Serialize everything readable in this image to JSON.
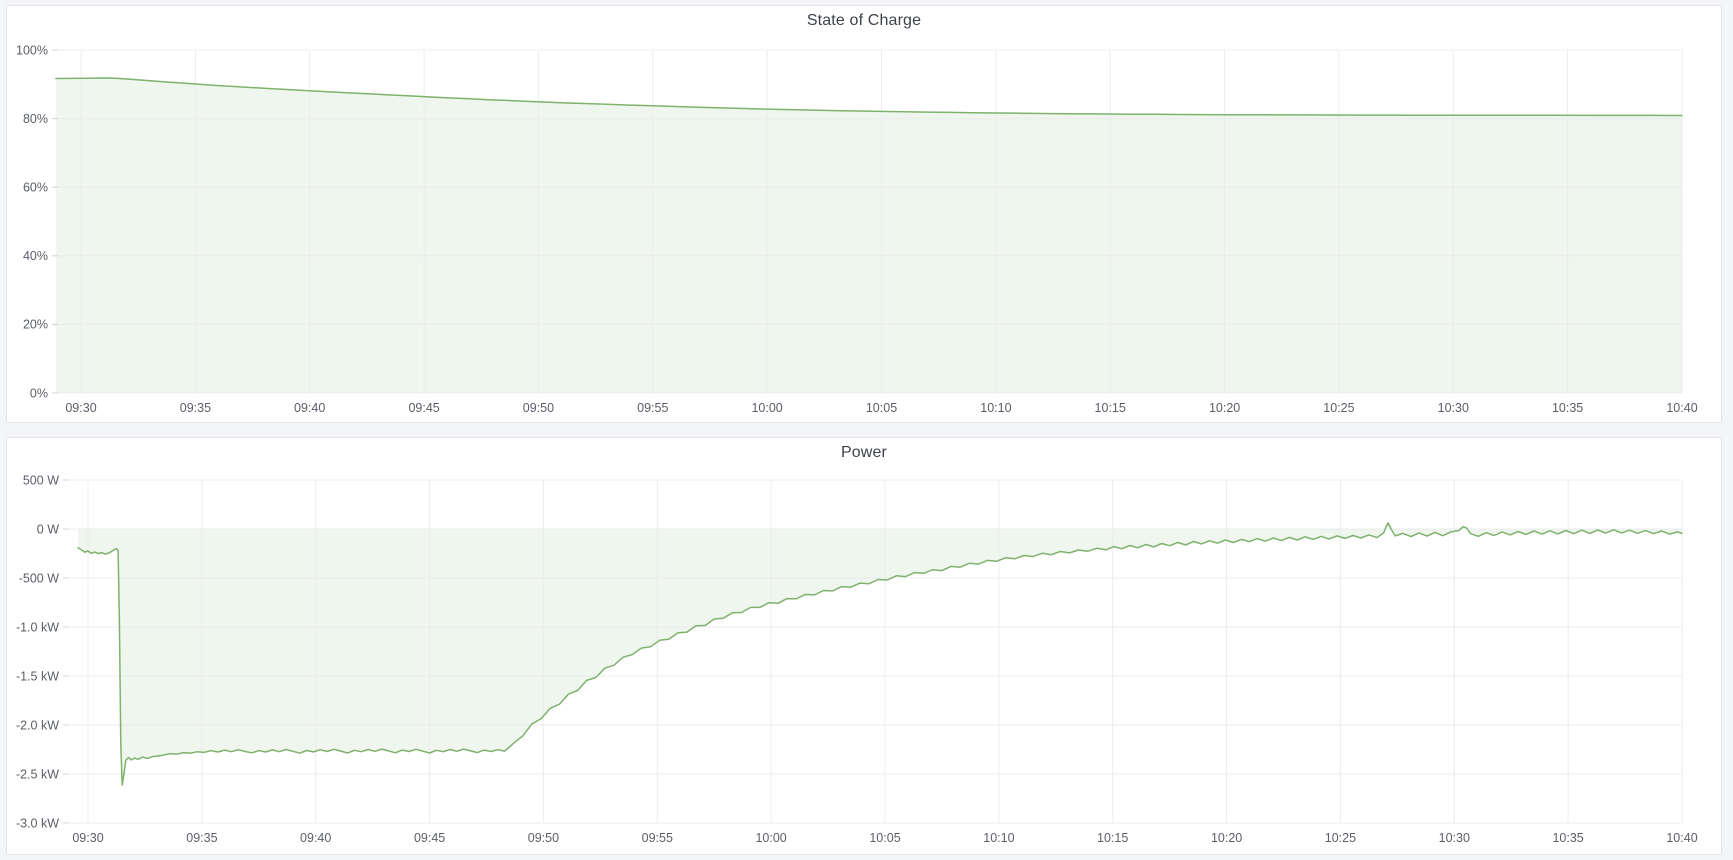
{
  "page": {
    "background": "#f4f5f8"
  },
  "colors": {
    "line": "#7eb26d",
    "fill": "rgba(126,178,109,0.12)",
    "grid": "#ebecee",
    "tick": "#d2d4d9",
    "axis_text": "#5a5e66",
    "title_text": "#3e424a",
    "panel_bg": "#ffffff",
    "panel_border": "#e3e5ea"
  },
  "chart_data": [
    {
      "type": "area",
      "title": "State of Charge",
      "unit": "percent",
      "grid": true,
      "legend": "none",
      "baseline": 0,
      "y_axis": {
        "min": 0,
        "max": 100,
        "ticks": [
          {
            "value": 100,
            "label": "100%"
          },
          {
            "value": 80,
            "label": "80%"
          },
          {
            "value": 60,
            "label": "60%"
          },
          {
            "value": 40,
            "label": "40%"
          },
          {
            "value": 20,
            "label": "20%"
          },
          {
            "value": 0,
            "label": "0%"
          }
        ]
      },
      "x_axis": {
        "tick_minutes": [
          570,
          575,
          580,
          585,
          590,
          595,
          600,
          605,
          610,
          615,
          620,
          625,
          630,
          635,
          640
        ],
        "tick_labels": [
          "09:30",
          "09:35",
          "09:40",
          "09:45",
          "09:50",
          "09:55",
          "10:00",
          "10:05",
          "10:10",
          "10:15",
          "10:20",
          "10:25",
          "10:30",
          "10:35",
          "10:40"
        ]
      },
      "points": [
        [
          568.9,
          91.68
        ],
        [
          569.6,
          91.72
        ],
        [
          570.3,
          91.76
        ],
        [
          571,
          91.85
        ],
        [
          571.4,
          91.8
        ],
        [
          572,
          91.55
        ],
        [
          572.6,
          91.25
        ],
        [
          573.3,
          90.9
        ],
        [
          574,
          90.55
        ],
        [
          574.7,
          90.22
        ],
        [
          575.4,
          89.9
        ],
        [
          576.1,
          89.6
        ],
        [
          576.8,
          89.32
        ],
        [
          577.5,
          89.05
        ],
        [
          578.2,
          88.78
        ],
        [
          579,
          88.48
        ],
        [
          579.8,
          88.18
        ],
        [
          580.6,
          87.9
        ],
        [
          581.4,
          87.62
        ],
        [
          582.2,
          87.35
        ],
        [
          583,
          87.08
        ],
        [
          583.8,
          86.8
        ],
        [
          584.6,
          86.55
        ],
        [
          585.4,
          86.28
        ],
        [
          586.2,
          86.02
        ],
        [
          587,
          85.78
        ],
        [
          587.8,
          85.52
        ],
        [
          588.6,
          85.3
        ],
        [
          589.4,
          85.06
        ],
        [
          590.2,
          84.85
        ],
        [
          591,
          84.62
        ],
        [
          592,
          84.4
        ],
        [
          593,
          84.16
        ],
        [
          594,
          83.94
        ],
        [
          595,
          83.72
        ],
        [
          596,
          83.52
        ],
        [
          597,
          83.32
        ],
        [
          598,
          83.12
        ],
        [
          599,
          82.95
        ],
        [
          600,
          82.78
        ],
        [
          601,
          82.62
        ],
        [
          602,
          82.48
        ],
        [
          603,
          82.34
        ],
        [
          604,
          82.22
        ],
        [
          605,
          82.1
        ],
        [
          606,
          82
        ],
        [
          607,
          81.9
        ],
        [
          608,
          81.8
        ],
        [
          609,
          81.72
        ],
        [
          610,
          81.64
        ],
        [
          611,
          81.56
        ],
        [
          612,
          81.5
        ],
        [
          613,
          81.44
        ],
        [
          614,
          81.38
        ],
        [
          615,
          81.33
        ],
        [
          616,
          81.28
        ],
        [
          617,
          81.24
        ],
        [
          618,
          81.2
        ],
        [
          619,
          81.17
        ],
        [
          620,
          81.14
        ],
        [
          621.5,
          81.1
        ],
        [
          623,
          81.07
        ],
        [
          624.5,
          81.04
        ],
        [
          626,
          81.02
        ],
        [
          628,
          81
        ],
        [
          630,
          80.98
        ],
        [
          632,
          80.96
        ],
        [
          634,
          80.95
        ],
        [
          636,
          80.93
        ],
        [
          638,
          80.92
        ],
        [
          640,
          80.91
        ]
      ]
    },
    {
      "type": "area",
      "title": "Power",
      "unit": "watt",
      "grid": true,
      "legend": "none",
      "baseline": 0,
      "y_axis": {
        "min": -3000,
        "max": 500,
        "ticks": [
          {
            "value": 500,
            "label": "500 W"
          },
          {
            "value": 0,
            "label": "0 W"
          },
          {
            "value": -500,
            "label": "-500 W"
          },
          {
            "value": -1000,
            "label": "-1.0 kW"
          },
          {
            "value": -1500,
            "label": "-1.5 kW"
          },
          {
            "value": -2000,
            "label": "-2.0 kW"
          },
          {
            "value": -2500,
            "label": "-2.5 kW"
          },
          {
            "value": -3000,
            "label": "-3.0 kW"
          }
        ]
      },
      "x_axis": {
        "tick_minutes": [
          570,
          575,
          580,
          585,
          590,
          595,
          600,
          605,
          610,
          615,
          620,
          625,
          630,
          635,
          640
        ],
        "tick_labels": [
          "09:30",
          "09:35",
          "09:40",
          "09:45",
          "09:50",
          "09:55",
          "10:00",
          "10:05",
          "10:10",
          "10:15",
          "10:20",
          "10:25",
          "10:30",
          "10:35",
          "10:40"
        ]
      },
      "points": [
        [
          569.56,
          -192
        ],
        [
          569.7,
          -212
        ],
        [
          569.85,
          -236
        ],
        [
          570,
          -225
        ],
        [
          570.15,
          -247
        ],
        [
          570.3,
          -236
        ],
        [
          570.45,
          -251
        ],
        [
          570.6,
          -241
        ],
        [
          570.75,
          -256
        ],
        [
          570.9,
          -246
        ],
        [
          571.05,
          -228
        ],
        [
          571.15,
          -210
        ],
        [
          571.25,
          -200
        ],
        [
          571.32,
          -222
        ],
        [
          571.38,
          -950
        ],
        [
          571.44,
          -2200
        ],
        [
          571.5,
          -2612
        ],
        [
          571.58,
          -2495
        ],
        [
          571.66,
          -2360
        ],
        [
          571.78,
          -2332
        ],
        [
          571.9,
          -2356
        ],
        [
          572.05,
          -2338
        ],
        [
          572.2,
          -2350
        ],
        [
          572.4,
          -2328
        ],
        [
          572.6,
          -2342
        ],
        [
          572.8,
          -2324
        ],
        [
          573,
          -2318
        ],
        [
          573.3,
          -2308
        ],
        [
          573.6,
          -2292
        ],
        [
          573.9,
          -2298
        ],
        [
          574.2,
          -2282
        ],
        [
          574.5,
          -2288
        ],
        [
          574.8,
          -2272
        ],
        [
          575.1,
          -2280
        ],
        [
          575.4,
          -2262
        ],
        [
          575.7,
          -2276
        ],
        [
          576,
          -2256
        ],
        [
          576.3,
          -2272
        ],
        [
          576.6,
          -2252
        ],
        [
          576.9,
          -2270
        ],
        [
          577.2,
          -2284
        ],
        [
          577.5,
          -2262
        ],
        [
          577.8,
          -2276
        ],
        [
          578.1,
          -2254
        ],
        [
          578.4,
          -2272
        ],
        [
          578.7,
          -2250
        ],
        [
          579,
          -2268
        ],
        [
          579.3,
          -2288
        ],
        [
          579.6,
          -2260
        ],
        [
          579.9,
          -2274
        ],
        [
          580.2,
          -2252
        ],
        [
          580.5,
          -2270
        ],
        [
          580.8,
          -2248
        ],
        [
          581.1,
          -2266
        ],
        [
          581.4,
          -2286
        ],
        [
          581.7,
          -2258
        ],
        [
          582,
          -2272
        ],
        [
          582.3,
          -2250
        ],
        [
          582.6,
          -2268
        ],
        [
          582.9,
          -2246
        ],
        [
          583.2,
          -2264
        ],
        [
          583.5,
          -2284
        ],
        [
          583.8,
          -2256
        ],
        [
          584.1,
          -2270
        ],
        [
          584.4,
          -2248
        ],
        [
          584.7,
          -2266
        ],
        [
          585,
          -2286
        ],
        [
          585.3,
          -2258
        ],
        [
          585.6,
          -2272
        ],
        [
          585.9,
          -2250
        ],
        [
          586.2,
          -2268
        ],
        [
          586.5,
          -2246
        ],
        [
          586.8,
          -2264
        ],
        [
          587.1,
          -2282
        ],
        [
          587.4,
          -2256
        ],
        [
          587.7,
          -2270
        ],
        [
          588,
          -2252
        ],
        [
          588.3,
          -2266
        ],
        [
          588.7,
          -2185
        ],
        [
          589.1,
          -2110
        ],
        [
          589.5,
          -1988
        ],
        [
          589.9,
          -1935
        ],
        [
          590.3,
          -1830
        ],
        [
          590.7,
          -1788
        ],
        [
          591.1,
          -1685
        ],
        [
          591.5,
          -1648
        ],
        [
          591.9,
          -1545
        ],
        [
          592.3,
          -1515
        ],
        [
          592.7,
          -1420
        ],
        [
          593.1,
          -1390
        ],
        [
          593.5,
          -1308
        ],
        [
          593.9,
          -1282
        ],
        [
          594.3,
          -1215
        ],
        [
          594.7,
          -1202
        ],
        [
          595.1,
          -1136
        ],
        [
          595.5,
          -1125
        ],
        [
          595.9,
          -1060
        ],
        [
          596.3,
          -1052
        ],
        [
          596.7,
          -988
        ],
        [
          597.1,
          -985
        ],
        [
          597.5,
          -918
        ],
        [
          597.9,
          -910
        ],
        [
          598.3,
          -855
        ],
        [
          598.7,
          -852
        ],
        [
          599.1,
          -800
        ],
        [
          599.5,
          -800
        ],
        [
          599.9,
          -752
        ],
        [
          600.3,
          -758
        ],
        [
          600.7,
          -710
        ],
        [
          601.1,
          -712
        ],
        [
          601.5,
          -668
        ],
        [
          601.9,
          -672
        ],
        [
          602.3,
          -628
        ],
        [
          602.7,
          -632
        ],
        [
          603.1,
          -588
        ],
        [
          603.5,
          -594
        ],
        [
          603.9,
          -552
        ],
        [
          604.3,
          -558
        ],
        [
          604.7,
          -515
        ],
        [
          605.1,
          -520
        ],
        [
          605.5,
          -478
        ],
        [
          605.9,
          -486
        ],
        [
          606.3,
          -445
        ],
        [
          606.7,
          -452
        ],
        [
          607.1,
          -415
        ],
        [
          607.5,
          -424
        ],
        [
          607.9,
          -382
        ],
        [
          608.3,
          -390
        ],
        [
          608.7,
          -350
        ],
        [
          609.1,
          -358
        ],
        [
          609.5,
          -320
        ],
        [
          609.9,
          -330
        ],
        [
          610.3,
          -294
        ],
        [
          610.7,
          -304
        ],
        [
          611.1,
          -270
        ],
        [
          611.5,
          -282
        ],
        [
          611.9,
          -248
        ],
        [
          612.3,
          -262
        ],
        [
          612.7,
          -230
        ],
        [
          613.1,
          -244
        ],
        [
          613.5,
          -214
        ],
        [
          613.9,
          -228
        ],
        [
          614.3,
          -196
        ],
        [
          614.7,
          -212
        ],
        [
          615.05,
          -180
        ],
        [
          615.4,
          -202
        ],
        [
          615.75,
          -168
        ],
        [
          616.1,
          -192
        ],
        [
          616.45,
          -158
        ],
        [
          616.8,
          -183
        ],
        [
          617.15,
          -148
        ],
        [
          617.5,
          -170
        ],
        [
          617.85,
          -138
        ],
        [
          618.2,
          -162
        ],
        [
          618.55,
          -128
        ],
        [
          618.9,
          -152
        ],
        [
          619.25,
          -120
        ],
        [
          619.6,
          -145
        ],
        [
          619.95,
          -112
        ],
        [
          620.3,
          -138
        ],
        [
          620.65,
          -106
        ],
        [
          621,
          -130
        ],
        [
          621.35,
          -98
        ],
        [
          621.7,
          -124
        ],
        [
          622.05,
          -92
        ],
        [
          622.4,
          -118
        ],
        [
          622.75,
          -86
        ],
        [
          623.1,
          -112
        ],
        [
          623.45,
          -80
        ],
        [
          623.8,
          -106
        ],
        [
          624.15,
          -76
        ],
        [
          624.5,
          -102
        ],
        [
          624.85,
          -70
        ],
        [
          625.2,
          -96
        ],
        [
          625.55,
          -66
        ],
        [
          625.9,
          -92
        ],
        [
          626.25,
          -60
        ],
        [
          626.6,
          -88
        ],
        [
          626.9,
          -40
        ],
        [
          627,
          20
        ],
        [
          627.1,
          62
        ],
        [
          627.25,
          -10
        ],
        [
          627.4,
          -70
        ],
        [
          627.75,
          -45
        ],
        [
          628.1,
          -78
        ],
        [
          628.45,
          -40
        ],
        [
          628.8,
          -72
        ],
        [
          629.15,
          -35
        ],
        [
          629.5,
          -68
        ],
        [
          629.85,
          -30
        ],
        [
          630.2,
          -15
        ],
        [
          630.4,
          25
        ],
        [
          630.55,
          8
        ],
        [
          630.7,
          -45
        ],
        [
          631.05,
          -75
        ],
        [
          631.4,
          -38
        ],
        [
          631.75,
          -66
        ],
        [
          632.1,
          -30
        ],
        [
          632.45,
          -60
        ],
        [
          632.8,
          -25
        ],
        [
          633.15,
          -55
        ],
        [
          633.5,
          -20
        ],
        [
          633.85,
          -52
        ],
        [
          634.2,
          -18
        ],
        [
          634.55,
          -50
        ],
        [
          634.9,
          -15
        ],
        [
          635.25,
          -48
        ],
        [
          635.6,
          -12
        ],
        [
          635.95,
          -45
        ],
        [
          636.3,
          -10
        ],
        [
          636.65,
          -42
        ],
        [
          637,
          -8
        ],
        [
          637.35,
          -40
        ],
        [
          637.7,
          -12
        ],
        [
          638.05,
          -44
        ],
        [
          638.4,
          -16
        ],
        [
          638.75,
          -48
        ],
        [
          639.1,
          -20
        ],
        [
          639.45,
          -52
        ],
        [
          639.8,
          -30
        ],
        [
          640,
          -45
        ]
      ]
    }
  ]
}
